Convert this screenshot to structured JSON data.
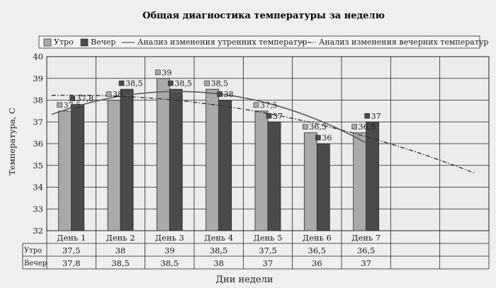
{
  "chart_data": {
    "type": "bar",
    "title": "Общая диагностика температуры за неделю",
    "xlabel": "Дни недели",
    "ylabel": "Температура, С",
    "ylim": [
      32,
      40
    ],
    "y_ticks": [
      "32",
      "33",
      "34",
      "35",
      "36",
      "37",
      "38",
      "39",
      "40"
    ],
    "categories": [
      "День 1",
      "День 2",
      "День 3",
      "День 4",
      "День 5",
      "День 6",
      "День 7"
    ],
    "series": [
      {
        "name": "Утро",
        "values": [
          37.5,
          38,
          39,
          38.5,
          37.5,
          36.5,
          36.5
        ],
        "labels": [
          "37,5",
          "38",
          "39",
          "38,5",
          "37,5",
          "36,5",
          "36,5"
        ],
        "color": "#a9a9a9"
      },
      {
        "name": "Вечер",
        "values": [
          37.8,
          38.5,
          38.5,
          38,
          37,
          36,
          37
        ],
        "labels": [
          "37,8",
          "38,5",
          "38,5",
          "38",
          "37",
          "36",
          "37"
        ],
        "color": "#4a4a4a"
      }
    ],
    "trendlines": [
      {
        "name": "Анализ изменения утренних температур",
        "style": "solid"
      },
      {
        "name": "Анализ изменения вечерних температур",
        "style": "dash-dot"
      }
    ],
    "grid": true,
    "legend_position": "top",
    "data_table": true
  }
}
